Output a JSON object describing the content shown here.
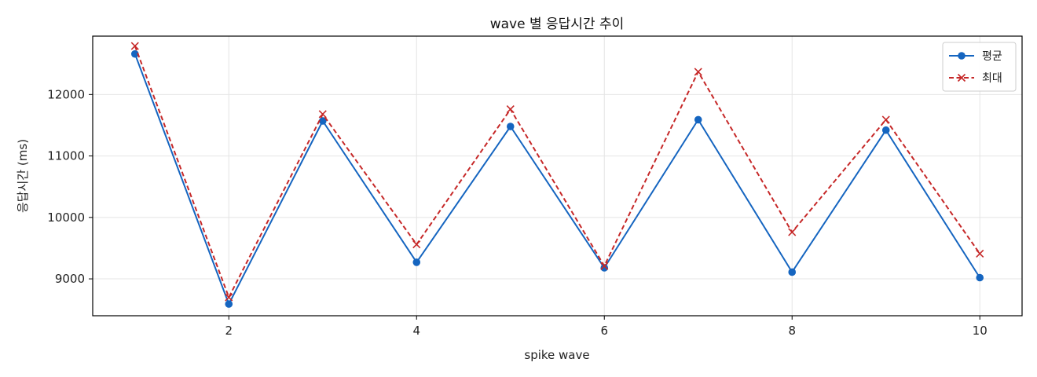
{
  "chart_data": {
    "type": "line",
    "title": "wave 별 응답시간 추이",
    "xlabel": "spike wave",
    "ylabel": "응답시간 (ms)",
    "x": [
      1,
      2,
      3,
      4,
      5,
      6,
      7,
      8,
      9,
      10
    ],
    "xlim": [
      0.55,
      10.45
    ],
    "ylim": [
      8400,
      12950
    ],
    "xticks": [
      2,
      4,
      6,
      8,
      10
    ],
    "yticks": [
      9000,
      10000,
      11000,
      12000
    ],
    "grid": true,
    "legend_position": "top-right",
    "series": [
      {
        "name": "평균",
        "values": [
          12660,
          8590,
          11570,
          9270,
          11480,
          9180,
          11590,
          9110,
          11420,
          9020
        ],
        "color": "#1565c0",
        "line_style": "solid",
        "marker": "circle"
      },
      {
        "name": "최대",
        "values": [
          12790,
          8700,
          11680,
          9560,
          11760,
          9210,
          12370,
          9760,
          11590,
          9410
        ],
        "color": "#c62828",
        "line_style": "dashed",
        "marker": "x"
      }
    ]
  }
}
